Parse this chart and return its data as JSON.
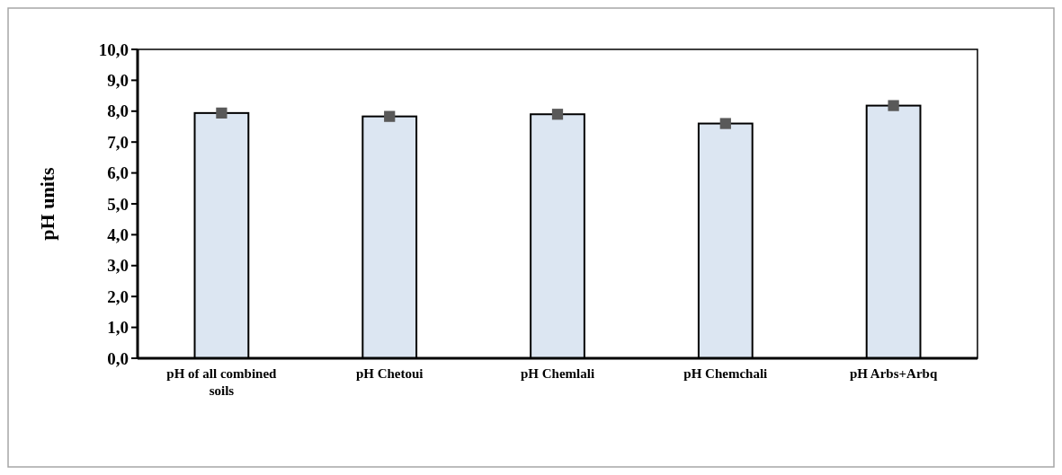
{
  "chart_data": {
    "type": "bar",
    "ylabel": "pH units",
    "categories": [
      "pH of all combined soils",
      "pH Chetoui",
      "pH Chemlali",
      "pH Chemchali",
      "pH Arbs+Arbq"
    ],
    "series": [
      {
        "color": "#dce6f2",
        "values": [
          7.94,
          7.83,
          7.9,
          7.6,
          8.18
        ]
      },
      {
        "type": "scatter",
        "color": "#595959",
        "marker": "square",
        "values": [
          7.94,
          7.83,
          7.9,
          7.6,
          8.18
        ]
      }
    ],
    "ylim": [
      0,
      10
    ],
    "yticks": [
      {
        "value": 0,
        "label": "0,0"
      },
      {
        "value": 1,
        "label": "1,0"
      },
      {
        "value": 2,
        "label": "2,0"
      },
      {
        "value": 3,
        "label": "3,0"
      },
      {
        "value": 4,
        "label": "4,0"
      },
      {
        "value": 5,
        "label": "5,0"
      },
      {
        "value": 6,
        "label": "6,0"
      },
      {
        "value": 7,
        "label": "7,0"
      },
      {
        "value": 8,
        "label": "8,0"
      },
      {
        "value": 9,
        "label": "9,0"
      },
      {
        "value": 10,
        "label": "10,0"
      }
    ],
    "grid": false
  }
}
